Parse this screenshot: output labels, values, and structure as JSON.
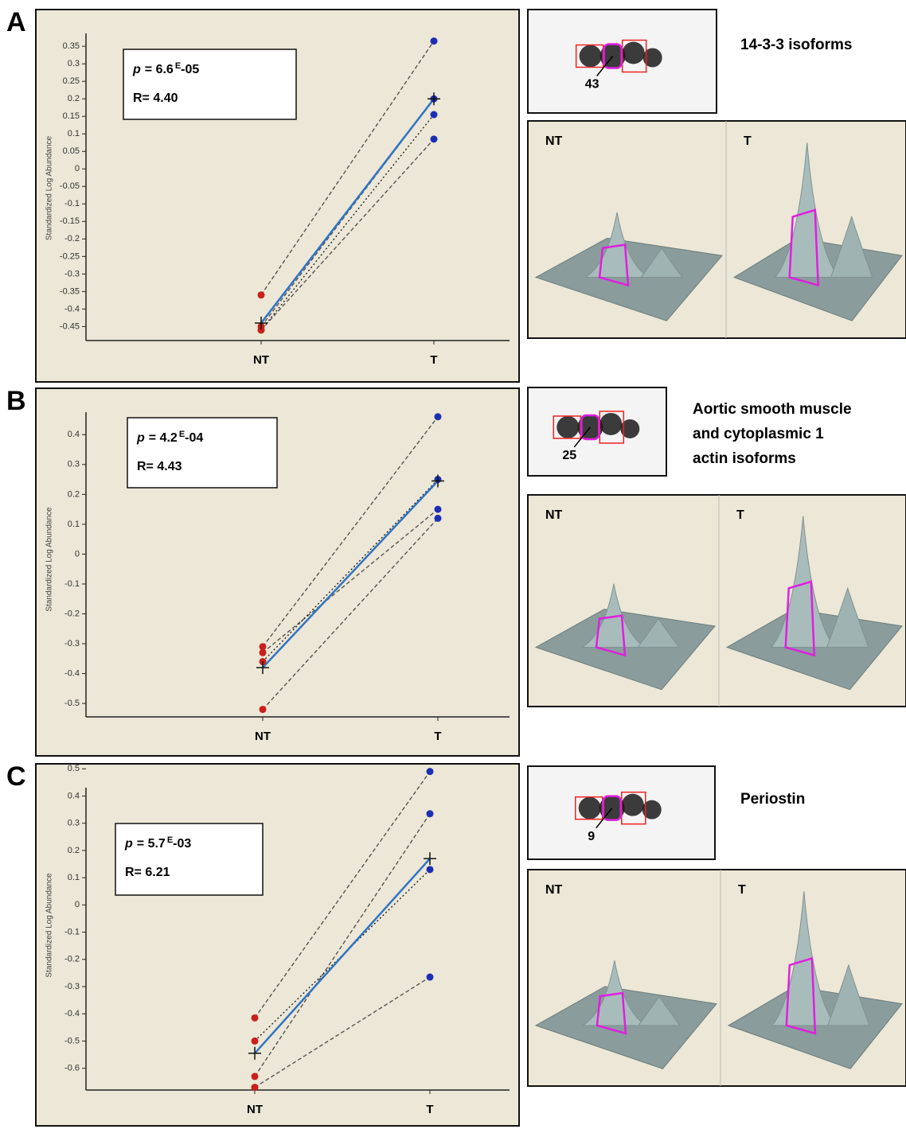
{
  "chart_data": [
    {
      "type": "line",
      "panel": "A",
      "categories": [
        "NT",
        "T"
      ],
      "y_label": "Standardized Log Abundance",
      "ylim": [
        -0.49,
        0.38
      ],
      "yticks": [
        0.35,
        0.3,
        0.25,
        0.2,
        0.15,
        0.1,
        0.05,
        0,
        -0.05,
        -0.1,
        -0.15,
        -0.2,
        -0.25,
        -0.3,
        -0.35,
        -0.4,
        -0.45
      ],
      "annotations": {
        "p_symbol": "p",
        "p_value": "= 6.6",
        "p_exp": "E",
        "p_tail": "-05",
        "r": "R= 4.40"
      },
      "point_colors": [
        "#c8201a",
        "#1c2fb4"
      ],
      "series": [
        {
          "color": "#555555",
          "style": "dashed",
          "values": [
            -0.36,
            0.365
          ]
        },
        {
          "color": "#555555",
          "style": "dashed",
          "values": [
            -0.45,
            0.2
          ]
        },
        {
          "color": "#555555",
          "style": "dashed",
          "values": [
            -0.46,
            0.085
          ]
        },
        {
          "color": "#222222",
          "style": "dotted",
          "values": [
            -0.46,
            0.155
          ]
        },
        {
          "color": "#2f74c4",
          "style": "mean",
          "values": [
            -0.44,
            0.2
          ]
        }
      ]
    },
    {
      "type": "line",
      "panel": "B",
      "categories": [
        "NT",
        "T"
      ],
      "y_label": "Standardized Log Abundance",
      "ylim": [
        -0.545,
        0.51
      ],
      "yticks": [
        0.4,
        0.3,
        0.2,
        0.1,
        0,
        -0.1,
        -0.2,
        -0.3,
        -0.4,
        -0.5
      ],
      "annotations": {
        "p_symbol": "p",
        "p_value": "= 4.2",
        "p_exp": "E",
        "p_tail": "-04",
        "r": "R= 4.43"
      },
      "point_colors": [
        "#c8201a",
        "#1c2fb4"
      ],
      "series": [
        {
          "color": "#555555",
          "style": "dashed",
          "values": [
            -0.31,
            0.46
          ]
        },
        {
          "color": "#555555",
          "style": "dashed",
          "values": [
            -0.33,
            0.15
          ]
        },
        {
          "color": "#222222",
          "style": "dotted",
          "values": [
            -0.36,
            0.25
          ]
        },
        {
          "color": "#555555",
          "style": "dashed",
          "values": [
            -0.52,
            0.12
          ]
        },
        {
          "color": "#2f74c4",
          "style": "mean",
          "values": [
            -0.38,
            0.245
          ]
        }
      ]
    },
    {
      "type": "line",
      "panel": "C",
      "categories": [
        "NT",
        "T"
      ],
      "y_label": "Standardized Log Abundance",
      "ylim": [
        -0.68,
        0.53
      ],
      "yticks": [
        0.5,
        0.4,
        0.3,
        0.2,
        0.1,
        0,
        -0.1,
        -0.2,
        -0.3,
        -0.4,
        -0.5,
        -0.6
      ],
      "annotations": {
        "p_symbol": "p",
        "p_value": "= 5.7",
        "p_exp": "E",
        "p_tail": "-03",
        "r": "R= 6.21"
      },
      "point_colors": [
        "#c8201a",
        "#1c2fb4"
      ],
      "series": [
        {
          "color": "#555555",
          "style": "dashed",
          "values": [
            -0.415,
            0.49
          ]
        },
        {
          "color": "#555555",
          "style": "dashed",
          "values": [
            -0.63,
            0.335
          ]
        },
        {
          "color": "#222222",
          "style": "dotted",
          "values": [
            -0.5,
            0.13
          ]
        },
        {
          "color": "#555555",
          "style": "dashed",
          "values": [
            -0.67,
            -0.265
          ]
        },
        {
          "color": "#2f74c4",
          "style": "mean",
          "values": [
            -0.545,
            0.17
          ]
        }
      ]
    }
  ],
  "panels": [
    {
      "caption": [
        "14-3-3 isoforms"
      ],
      "spot": "43",
      "views": [
        "NT",
        "T"
      ]
    },
    {
      "caption": [
        "Aortic smooth muscle",
        "and cytoplasmic 1",
        "actin isoforms"
      ],
      "spot": "25",
      "views": [
        "NT",
        "T"
      ]
    },
    {
      "caption": [
        "Periostin"
      ],
      "spot": "9",
      "views": [
        "NT",
        "T"
      ]
    }
  ]
}
